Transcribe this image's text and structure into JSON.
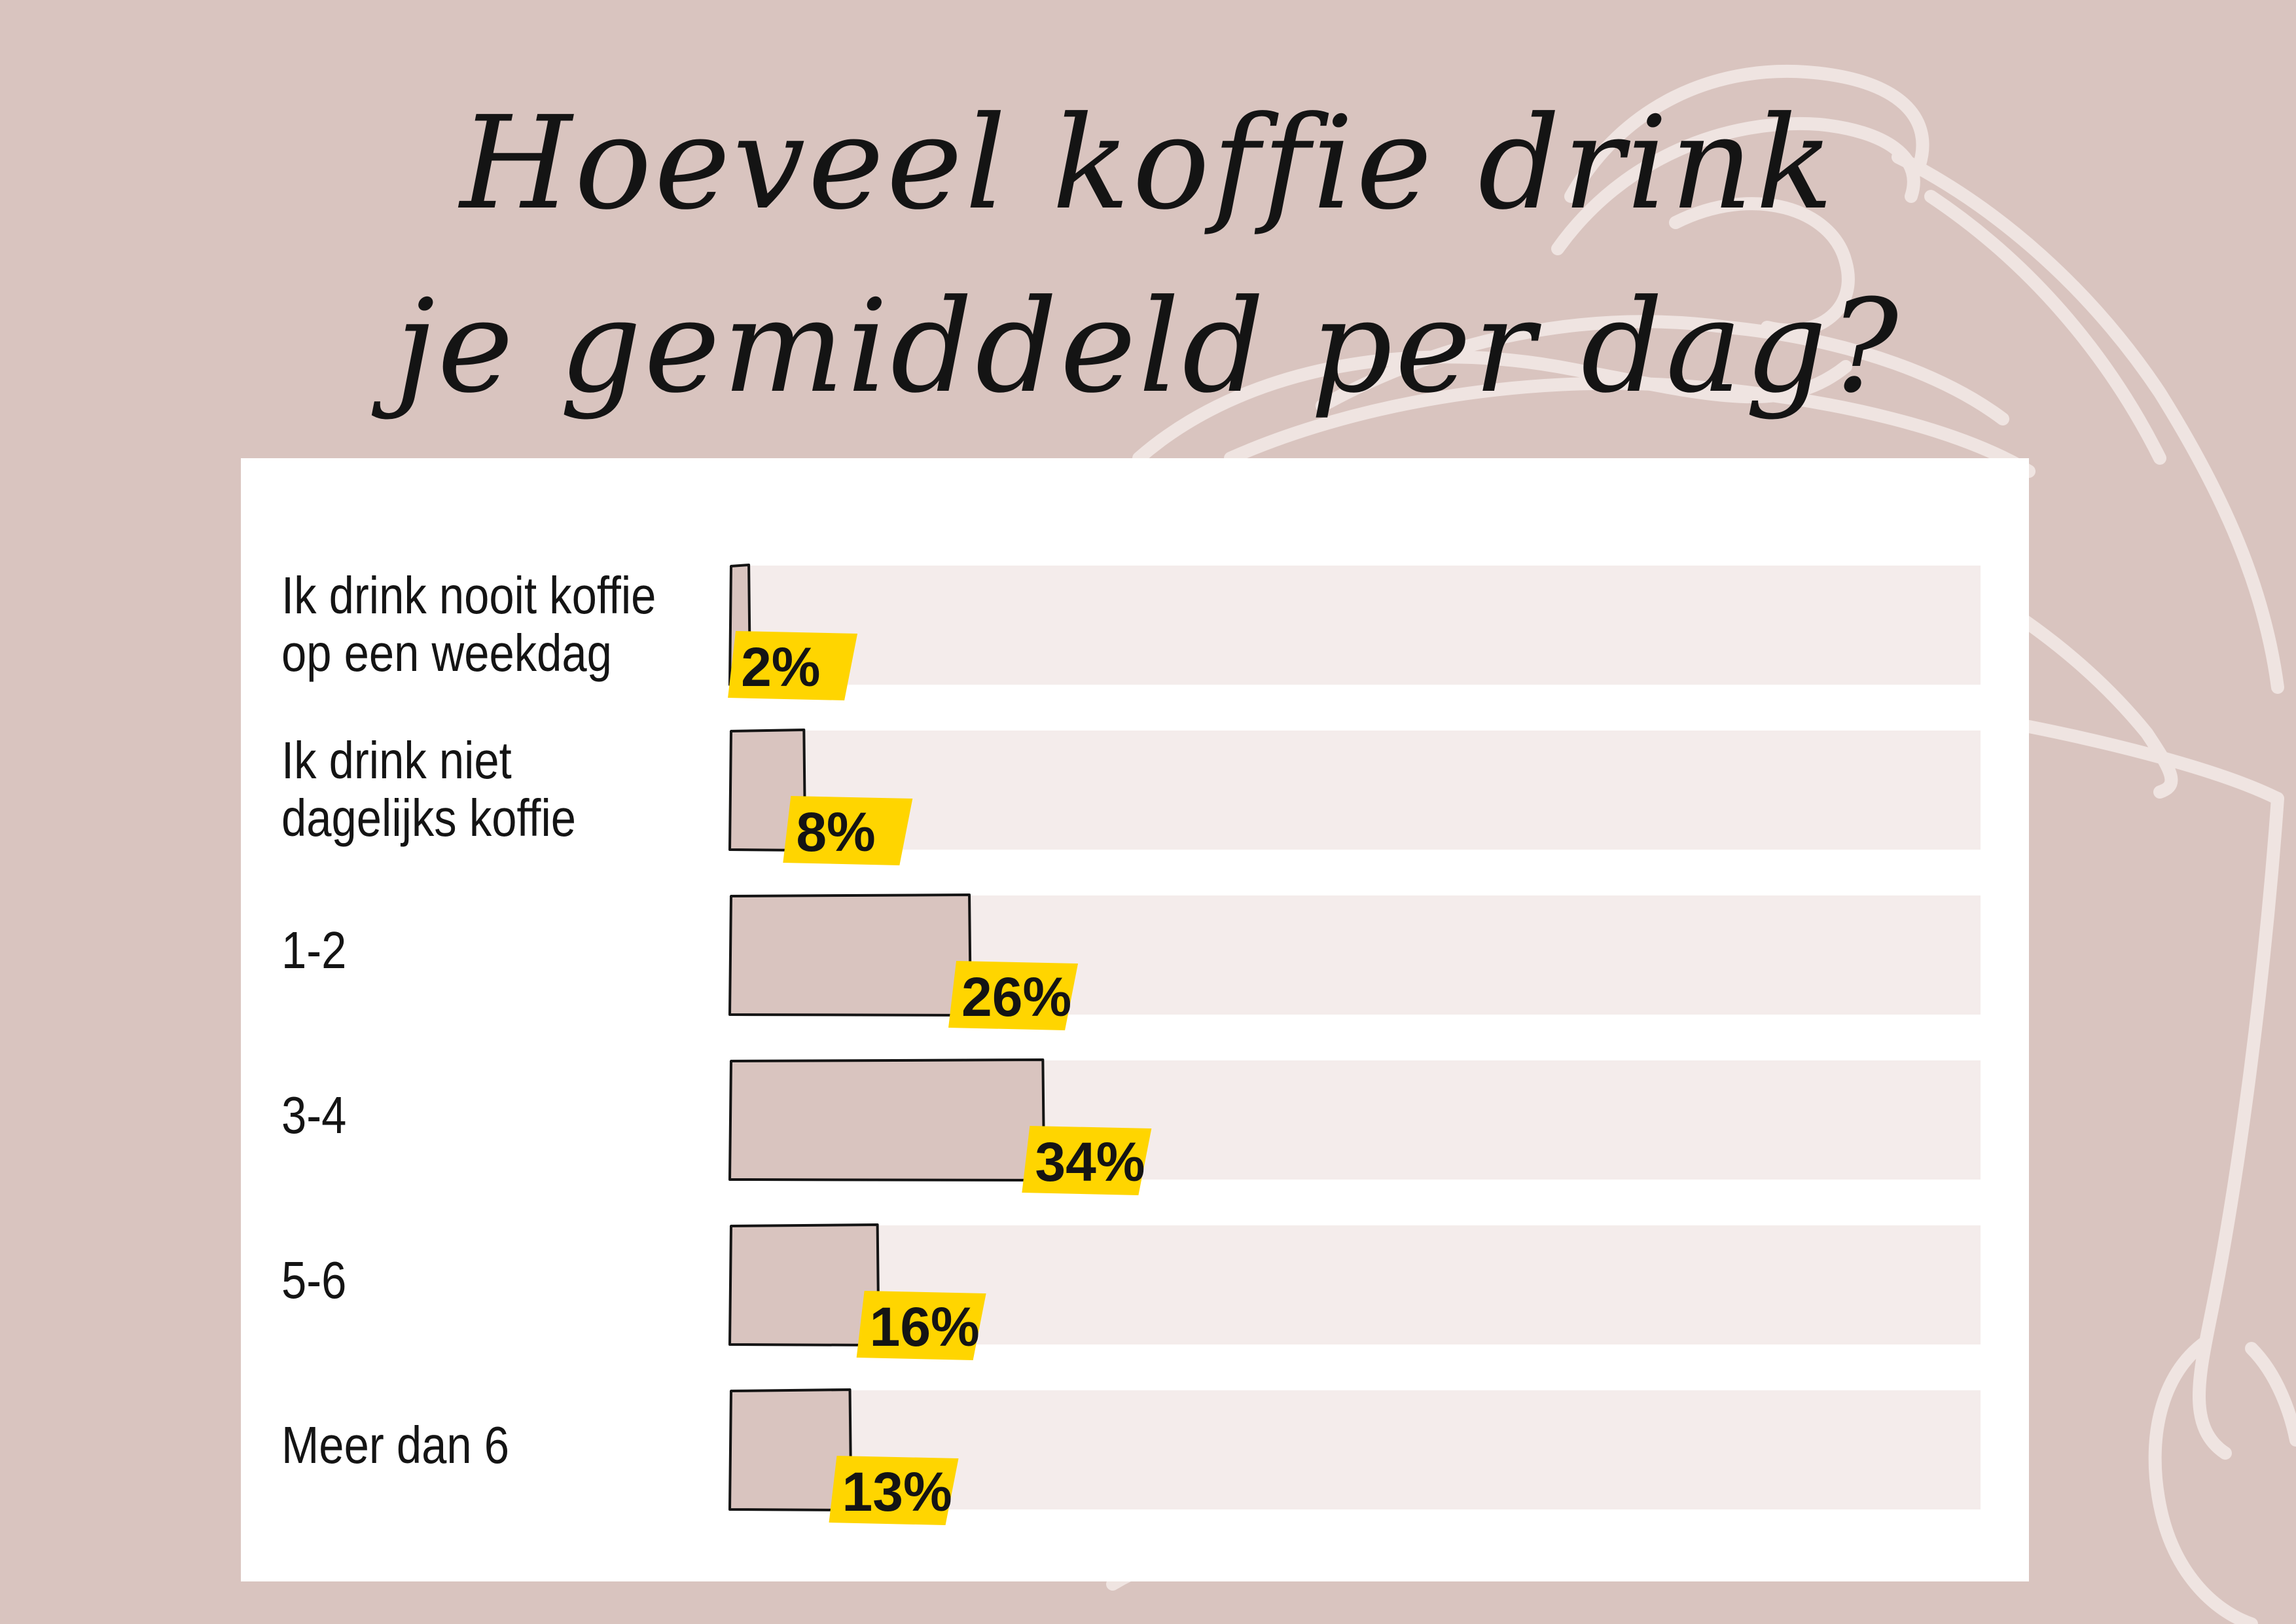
{
  "chart_data": {
    "type": "bar",
    "orientation": "horizontal",
    "title": "Hoeveel koffie drink je gemiddeld per dag?",
    "title_lines": [
      "Hoeveel koffie drink",
      "je gemiddeld per dag?"
    ],
    "categories": [
      "Ik drink nooit koffie op een weekdag",
      "Ik drink niet dagelijks koffie",
      "1-2",
      "3-4",
      "5-6",
      "Meer dan 6"
    ],
    "category_lines": [
      [
        "Ik drink nooit koffie",
        "op een weekdag"
      ],
      [
        "Ik drink niet",
        "dagelijks koffie"
      ],
      [
        "1-2"
      ],
      [
        "3-4"
      ],
      [
        "5-6"
      ],
      [
        "Meer dan 6"
      ]
    ],
    "values": [
      2,
      8,
      26,
      34,
      16,
      13
    ],
    "value_labels": [
      "2%",
      "8%",
      "26%",
      "34%",
      "16%",
      "13%"
    ],
    "xlim": [
      0,
      100
    ],
    "xlabel": "",
    "ylabel": "",
    "grid": false,
    "legend": "none"
  },
  "colors": {
    "background": "#d9c4bf",
    "panel": "#ffffff",
    "track": "#f4eceb",
    "bar": "#d9c4bf",
    "bar_outline": "#141414",
    "label_badge": "#ffd500",
    "text": "#141414",
    "decoration": "#efe4e1"
  }
}
